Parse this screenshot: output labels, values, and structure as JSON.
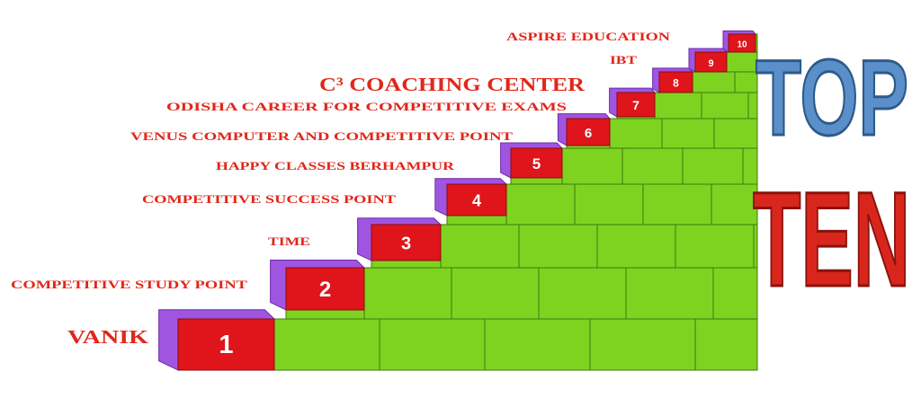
{
  "heading": {
    "line1": "TOP",
    "line2": "TEN"
  },
  "items": [
    {
      "rank": 1,
      "name": "VANIK"
    },
    {
      "rank": 2,
      "name": "COMPETITIVE STUDY POINT"
    },
    {
      "rank": 3,
      "name": "TIME"
    },
    {
      "rank": 4,
      "name": "COMPETITIVE SUCCESS POINT"
    },
    {
      "rank": 5,
      "name": "HAPPY CLASSES BERHAMPUR"
    },
    {
      "rank": 6,
      "name": "VENUS COMPUTER AND COMPETITIVE POINT"
    },
    {
      "rank": 7,
      "name": "ODISHA CAREER FOR COMPETITIVE EXAMS"
    },
    {
      "rank": 8,
      "name": "C³ COACHING CENTER"
    },
    {
      "rank": 9,
      "name": "IBT"
    },
    {
      "rank": 10,
      "name": "ASPIRE EDUCATION"
    }
  ]
}
